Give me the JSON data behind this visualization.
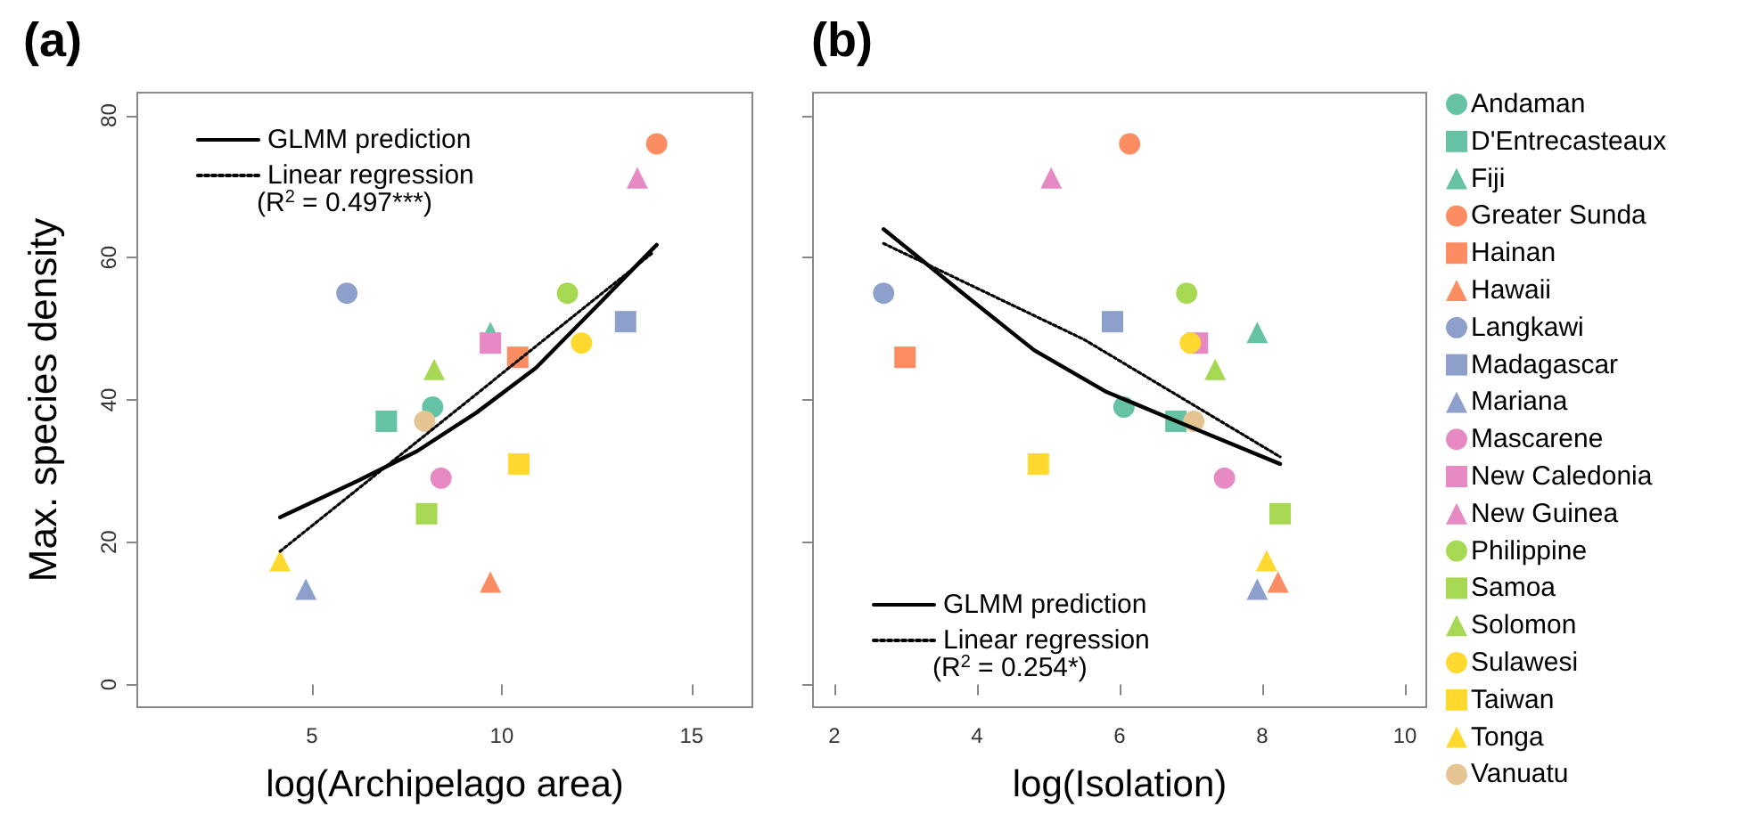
{
  "chart_data": [
    {
      "type": "scatter",
      "title": "(a)",
      "xlabel": "log(Archipelago area)",
      "ylabel": "Max. species density",
      "xlim": [
        0.4,
        16.6
      ],
      "ylim": [
        -3.2,
        83.2
      ],
      "xticks": [
        5,
        10,
        15
      ],
      "yticks": [
        0,
        20,
        40,
        60,
        80
      ],
      "legend": "top left",
      "annotations": [
        "(R$^{2}$ = 0.497***)"
      ],
      "series": [
        {
          "color": "#66c2a5",
          "marker": "circle",
          "x": [
            8.18
          ],
          "values": [
            39
          ]
        },
        {
          "color": "#66c2a5",
          "marker": "square",
          "x": [
            6.96
          ],
          "values": [
            37
          ]
        },
        {
          "color": "#66c2a5",
          "marker": "triangle",
          "x": [
            9.7
          ],
          "values": [
            49.5
          ]
        },
        {
          "color": "#fc8d62",
          "marker": "circle",
          "x": [
            14.08
          ],
          "values": [
            76
          ]
        },
        {
          "color": "#fc8d62",
          "marker": "square",
          "x": [
            10.42
          ],
          "values": [
            46
          ]
        },
        {
          "color": "#fc8d62",
          "marker": "triangle",
          "x": [
            9.7
          ],
          "values": [
            14.4
          ]
        },
        {
          "color": "#8da0cb",
          "marker": "circle",
          "x": [
            5.92
          ],
          "values": [
            55
          ]
        },
        {
          "color": "#8da0cb",
          "marker": "square",
          "x": [
            13.26
          ],
          "values": [
            51
          ]
        },
        {
          "color": "#8da0cb",
          "marker": "triangle",
          "x": [
            4.84
          ],
          "values": [
            13.4
          ]
        },
        {
          "color": "#e78ac3",
          "marker": "circle",
          "x": [
            8.4
          ],
          "values": [
            29
          ]
        },
        {
          "color": "#e78ac3",
          "marker": "square",
          "x": [
            9.7
          ],
          "values": [
            48
          ]
        },
        {
          "color": "#e78ac3",
          "marker": "triangle",
          "x": [
            13.57
          ],
          "values": [
            71.2
          ]
        },
        {
          "color": "#a6d854",
          "marker": "circle",
          "x": [
            11.73
          ],
          "values": [
            55
          ]
        },
        {
          "color": "#a6d854",
          "marker": "square",
          "x": [
            8.02
          ],
          "values": [
            24
          ]
        },
        {
          "color": "#a6d854",
          "marker": "triangle",
          "x": [
            8.22
          ],
          "values": [
            44.3
          ]
        },
        {
          "color": "#ffd92f",
          "marker": "circle",
          "x": [
            12.1
          ],
          "values": [
            48
          ]
        },
        {
          "color": "#ffd92f",
          "marker": "square",
          "x": [
            10.45
          ],
          "values": [
            31
          ]
        },
        {
          "color": "#ffd92f",
          "marker": "triangle",
          "x": [
            4.16
          ],
          "values": [
            17.4
          ]
        },
        {
          "color": "#e5c494",
          "marker": "circle",
          "x": [
            7.97
          ],
          "values": [
            37
          ]
        },
        {
          "type": "line",
          "name": "GLMM prediction",
          "color": "#000000",
          "marker": "none",
          "line_style": "solid",
          "x": [
            4.16,
            6.2,
            7.77,
            9.33,
            10.9,
            12.45,
            14.08
          ],
          "values": [
            23.5,
            28.6,
            32.8,
            38.2,
            44.5,
            52.9,
            61.8
          ]
        },
        {
          "type": "line",
          "name": "Linear regression",
          "color": "#000000",
          "marker": "none",
          "line_style": "dotted",
          "x": [
            4.16,
            14.0
          ],
          "values": [
            18.7,
            60.8
          ]
        }
      ]
    },
    {
      "type": "scatter",
      "title": "(b)",
      "xlabel": "log(Isolation)",
      "xlim": [
        1.7,
        10.3
      ],
      "ylim": [
        -3.2,
        83.2
      ],
      "xticks": [
        2,
        4,
        6,
        8,
        10
      ],
      "yticks": [
        0,
        20,
        40,
        60,
        80
      ],
      "tick_labels": "x",
      "legend": "right",
      "annotations": [
        "(R$^{2}$ = 0.254*)"
      ],
      "series": [
        {
          "name": "Andaman",
          "color": "#66c2a5",
          "marker": "circle",
          "x": [
            6.06
          ],
          "values": [
            39
          ]
        },
        {
          "name": "D'Entrecasteaux",
          "color": "#66c2a5",
          "marker": "square",
          "x": [
            6.79
          ],
          "values": [
            37
          ]
        },
        {
          "name": "Fiji",
          "color": "#66c2a5",
          "marker": "triangle",
          "x": [
            7.93
          ],
          "values": [
            49.5
          ]
        },
        {
          "name": "Greater Sunda",
          "color": "#fc8d62",
          "marker": "circle",
          "x": [
            6.14
          ],
          "values": [
            76
          ]
        },
        {
          "name": "Hainan",
          "color": "#fc8d62",
          "marker": "square",
          "x": [
            2.99
          ],
          "values": [
            46
          ]
        },
        {
          "name": "Hawaii",
          "color": "#fc8d62",
          "marker": "triangle",
          "x": [
            8.22
          ],
          "values": [
            14.4
          ]
        },
        {
          "name": "Langkawi",
          "color": "#8da0cb",
          "marker": "circle",
          "x": [
            2.69
          ],
          "values": [
            55
          ]
        },
        {
          "name": "Madagascar",
          "color": "#8da0cb",
          "marker": "square",
          "x": [
            5.9
          ],
          "values": [
            51
          ]
        },
        {
          "name": "Mariana",
          "color": "#8da0cb",
          "marker": "triangle",
          "x": [
            7.93
          ],
          "values": [
            13.4
          ]
        },
        {
          "name": "Mascarene",
          "color": "#e78ac3",
          "marker": "circle",
          "x": [
            7.47
          ],
          "values": [
            29
          ]
        },
        {
          "name": "New Caledonia",
          "color": "#e78ac3",
          "marker": "square",
          "x": [
            7.09
          ],
          "values": [
            48
          ]
        },
        {
          "name": "New Guinea",
          "color": "#e78ac3",
          "marker": "triangle",
          "x": [
            5.04
          ],
          "values": [
            71.2
          ]
        },
        {
          "name": "Philippine",
          "color": "#a6d854",
          "marker": "circle",
          "x": [
            6.94
          ],
          "values": [
            55
          ]
        },
        {
          "name": "Samoa",
          "color": "#a6d854",
          "marker": "square",
          "x": [
            8.25
          ],
          "values": [
            24
          ]
        },
        {
          "name": "Solomon",
          "color": "#a6d854",
          "marker": "triangle",
          "x": [
            7.34
          ],
          "values": [
            44.3
          ]
        },
        {
          "name": "Sulawesi",
          "color": "#ffd92f",
          "marker": "circle",
          "x": [
            6.99
          ],
          "values": [
            48
          ]
        },
        {
          "name": "Taiwan",
          "color": "#ffd92f",
          "marker": "square",
          "x": [
            4.86
          ],
          "values": [
            31
          ]
        },
        {
          "name": "Tonga",
          "color": "#ffd92f",
          "marker": "triangle",
          "x": [
            8.06
          ],
          "values": [
            17.4
          ]
        },
        {
          "name": "Vanuatu",
          "color": "#e5c494",
          "marker": "circle",
          "x": [
            7.04
          ],
          "values": [
            37
          ]
        },
        {
          "type": "line",
          "name": "GLMM prediction",
          "color": "#000000",
          "marker": "none",
          "line_style": "solid",
          "x": [
            2.69,
            3.8,
            4.8,
            5.8,
            6.8,
            8.25
          ],
          "values": [
            64,
            55,
            47,
            41.2,
            37,
            31
          ]
        },
        {
          "type": "line",
          "name": "Linear regression",
          "color": "#000000",
          "marker": "none",
          "line_style": "dotted",
          "x": [
            2.69,
            5.5,
            8.25
          ],
          "values": [
            62,
            48.5,
            32
          ]
        }
      ]
    }
  ]
}
